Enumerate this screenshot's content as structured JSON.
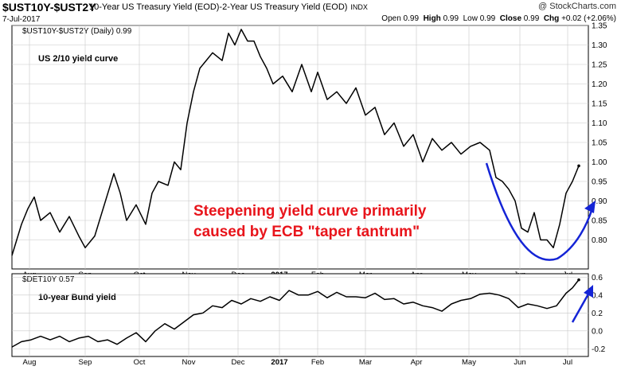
{
  "header": {
    "symbol": "$UST10Y-$UST2Y",
    "description": "10-Year US Treasury Yield (EOD)-2-Year US Treasury Yield (EOD)",
    "exchange": "INDX",
    "brand": "@ StockCharts.com",
    "date": "7-Jul-2017",
    "ohlc": {
      "open_label": "Open",
      "open": "0.99",
      "high_label": "High",
      "high": "0.99",
      "low_label": "Low",
      "low": "0.99",
      "close_label": "Close",
      "close": "0.99",
      "chg_label": "Chg",
      "chg": "+0.02 (+2.06%)"
    }
  },
  "annotations": {
    "top_label": "US 2/10 yield curve",
    "bottom_label": "10-year Bund yield",
    "headline_line1": "Steepening yield curve primarily",
    "headline_line2": "caused by ECB \"taper tantrum\"",
    "colors": {
      "headline": "#e8141b",
      "arrow": "#1424d6",
      "line": "#000000"
    }
  },
  "chart_data": [
    {
      "type": "line",
      "legend": "$UST10Y-$UST2Y (Daily) 0.99",
      "ylim": [
        0.75,
        1.35
      ],
      "yticks": [
        "0.80",
        "0.85",
        "0.90",
        "0.95",
        "1.00",
        "1.05",
        "1.10",
        "1.15",
        "1.20",
        "1.25",
        "1.30",
        "1.35"
      ],
      "x_labels": [
        "Aug",
        "Sep",
        "Oct",
        "Nov",
        "Dec",
        "2017",
        "Feb",
        "Mar",
        "Apr",
        "May",
        "Jun",
        "Jul"
      ],
      "x_label_positions": [
        0.55,
        2.3,
        4.0,
        5.55,
        7.1,
        8.4,
        9.6,
        11.1,
        12.7,
        14.35,
        15.95,
        17.45
      ],
      "x": [
        0,
        0.3,
        0.5,
        0.7,
        0.9,
        1.2,
        1.5,
        1.8,
        2.1,
        2.3,
        2.6,
        2.9,
        3.2,
        3.4,
        3.6,
        3.9,
        4.2,
        4.4,
        4.6,
        4.9,
        5.1,
        5.3,
        5.5,
        5.7,
        5.9,
        6.1,
        6.3,
        6.6,
        6.8,
        7.0,
        7.2,
        7.4,
        7.6,
        7.8,
        8.0,
        8.2,
        8.5,
        8.8,
        9.1,
        9.4,
        9.6,
        9.9,
        10.2,
        10.5,
        10.8,
        11.1,
        11.4,
        11.7,
        12.0,
        12.3,
        12.6,
        12.9,
        13.2,
        13.5,
        13.8,
        14.1,
        14.4,
        14.7,
        15.0,
        15.2,
        15.4,
        15.6,
        15.8,
        16.0,
        16.2,
        16.4,
        16.6,
        16.8,
        17.0,
        17.2,
        17.4,
        17.6,
        17.8
      ],
      "y": [
        0.76,
        0.84,
        0.88,
        0.91,
        0.85,
        0.87,
        0.82,
        0.86,
        0.81,
        0.78,
        0.81,
        0.89,
        0.97,
        0.92,
        0.85,
        0.89,
        0.84,
        0.92,
        0.95,
        0.94,
        1.0,
        0.98,
        1.1,
        1.18,
        1.24,
        1.26,
        1.28,
        1.26,
        1.33,
        1.3,
        1.34,
        1.31,
        1.31,
        1.27,
        1.24,
        1.2,
        1.22,
        1.18,
        1.25,
        1.18,
        1.23,
        1.16,
        1.18,
        1.15,
        1.19,
        1.12,
        1.14,
        1.07,
        1.1,
        1.04,
        1.07,
        1.0,
        1.06,
        1.03,
        1.05,
        1.02,
        1.04,
        1.05,
        1.03,
        0.96,
        0.95,
        0.93,
        0.9,
        0.83,
        0.82,
        0.87,
        0.8,
        0.8,
        0.78,
        0.84,
        0.92,
        0.95,
        0.99
      ]
    },
    {
      "type": "line",
      "legend": "$DET10Y 0.57",
      "ylim": [
        -0.25,
        0.62
      ],
      "yticks": [
        "-0.2",
        "0.0",
        "0.2",
        "0.4",
        "0.6"
      ],
      "x_labels": [
        "Aug",
        "Sep",
        "Oct",
        "Nov",
        "Dec",
        "2017",
        "Feb",
        "Mar",
        "Apr",
        "May",
        "Jun",
        "Jul"
      ],
      "x_label_positions": [
        0.55,
        2.3,
        4.0,
        5.55,
        7.1,
        8.4,
        9.6,
        11.1,
        12.7,
        14.35,
        15.95,
        17.45
      ],
      "x": [
        0,
        0.3,
        0.6,
        0.9,
        1.2,
        1.5,
        1.8,
        2.1,
        2.4,
        2.7,
        3.0,
        3.3,
        3.6,
        3.9,
        4.2,
        4.5,
        4.8,
        5.1,
        5.4,
        5.7,
        6.0,
        6.3,
        6.6,
        6.9,
        7.2,
        7.5,
        7.8,
        8.1,
        8.4,
        8.7,
        9.0,
        9.3,
        9.6,
        9.9,
        10.2,
        10.5,
        10.8,
        11.1,
        11.4,
        11.7,
        12.0,
        12.3,
        12.6,
        12.9,
        13.2,
        13.5,
        13.8,
        14.1,
        14.4,
        14.7,
        15.0,
        15.3,
        15.6,
        15.9,
        16.2,
        16.5,
        16.8,
        17.1,
        17.4,
        17.6,
        17.8
      ],
      "y": [
        -0.18,
        -0.12,
        -0.1,
        -0.06,
        -0.1,
        -0.06,
        -0.12,
        -0.08,
        -0.06,
        -0.12,
        -0.1,
        -0.15,
        -0.08,
        -0.02,
        -0.12,
        0.0,
        0.08,
        0.02,
        0.1,
        0.18,
        0.2,
        0.28,
        0.26,
        0.34,
        0.3,
        0.36,
        0.33,
        0.38,
        0.34,
        0.45,
        0.4,
        0.4,
        0.44,
        0.37,
        0.43,
        0.38,
        0.38,
        0.37,
        0.42,
        0.35,
        0.36,
        0.3,
        0.32,
        0.28,
        0.26,
        0.22,
        0.3,
        0.34,
        0.36,
        0.41,
        0.42,
        0.4,
        0.36,
        0.26,
        0.3,
        0.28,
        0.25,
        0.28,
        0.42,
        0.48,
        0.57
      ]
    }
  ]
}
